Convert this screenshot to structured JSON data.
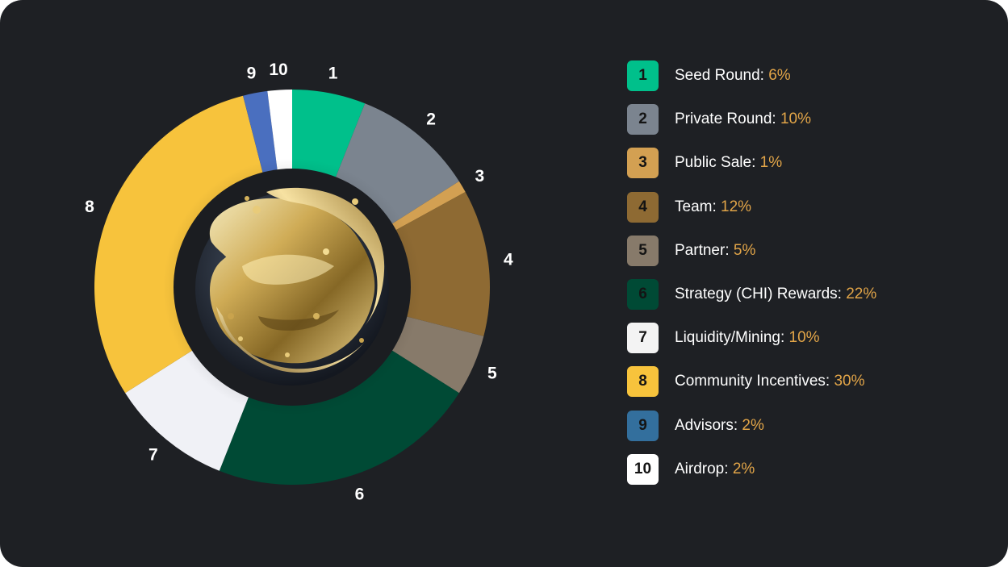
{
  "chart_data": {
    "type": "pie",
    "variant": "donut",
    "start": "top",
    "direction": "clockwise",
    "slices": [
      {
        "id": "1",
        "label": "Seed Round",
        "value": 6,
        "color": "#00c08b",
        "badge_text_color": "#141414"
      },
      {
        "id": "2",
        "label": "Private Round",
        "value": 10,
        "color": "#7b848f",
        "badge_text_color": "#141414"
      },
      {
        "id": "3",
        "label": "Public Sale",
        "value": 1,
        "color": "#d3a052",
        "badge_text_color": "#141414"
      },
      {
        "id": "4",
        "label": "Team",
        "value": 12,
        "color": "#8e6a33",
        "badge_text_color": "#141414"
      },
      {
        "id": "5",
        "label": "Partner",
        "value": 5,
        "color": "#877a6a",
        "badge_text_color": "#141414"
      },
      {
        "id": "6",
        "label": "Strategy (CHI) Rewards",
        "value": 22,
        "color": "#004a35",
        "badge_text_color": "#141414"
      },
      {
        "id": "7",
        "label": "Liquidity/Mining",
        "value": 10,
        "color": "#f0f1f6",
        "badge_text_color": "#141414"
      },
      {
        "id": "8",
        "label": "Community Incentives",
        "value": 30,
        "color": "#f7c33c",
        "badge_text_color": "#141414"
      },
      {
        "id": "9",
        "label": "Advisors",
        "value": 2,
        "color": "#4a6fbf",
        "badge_text_color": "#141414"
      },
      {
        "id": "10",
        "label": "Airdrop",
        "value": 2,
        "color": "#ffffff",
        "badge_text_color": "#141414"
      }
    ]
  },
  "legend": {
    "separator": ": ",
    "suffix": "%",
    "items": [
      {
        "badge": "1",
        "label": "Seed Round",
        "value": "6%",
        "badge_color": "#00c08b"
      },
      {
        "badge": "2",
        "label": "Private Round",
        "value": "10%",
        "badge_color": "#7b848f"
      },
      {
        "badge": "3",
        "label": "Public Sale",
        "value": "1%",
        "badge_color": "#d3a052"
      },
      {
        "badge": "4",
        "label": "Team",
        "value": "12%",
        "badge_color": "#8e6a33"
      },
      {
        "badge": "5",
        "label": "Partner",
        "value": "5%",
        "badge_color": "#877a6a"
      },
      {
        "badge": "6",
        "label": "Strategy (CHI) Rewards",
        "value": "22%",
        "badge_color": "#004a35"
      },
      {
        "badge": "7",
        "label": "Liquidity/Mining",
        "value": "10%",
        "badge_color": "#f3f3f3"
      },
      {
        "badge": "8",
        "label": "Community Incentives",
        "value": "30%",
        "badge_color": "#f7c33c"
      },
      {
        "badge": "9",
        "label": "Advisors",
        "value": "2%",
        "badge_color": "#336f9d"
      },
      {
        "badge": "10",
        "label": "Airdrop",
        "value": "2%",
        "badge_color": "#ffffff"
      }
    ]
  },
  "colors": {
    "background": "#1e2024",
    "value_accent": "#e2a548",
    "label_text": "#ffffff",
    "center_disc": "#1b1d21",
    "center_image": "gold-liquid-splash"
  }
}
